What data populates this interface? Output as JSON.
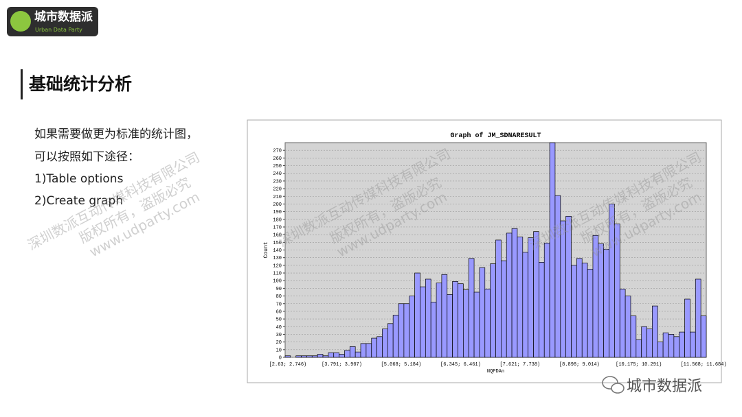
{
  "slide": {
    "logo": {
      "name": "城市数据派",
      "subtitle": "Urban Data Party"
    },
    "title": "基础统计分析",
    "body": [
      "如果需要做更为标准的统计图，",
      "可以按照如下途径：",
      "1)Table options",
      "2)Create graph"
    ],
    "watermark": [
      "深圳数派互动传媒科技有限公司",
      "版权所有，盗版必究",
      "www.udparty.com"
    ],
    "footer": "城市数据派"
  },
  "chart_data": {
    "type": "bar",
    "title": "Graph of JM_SDNARESULT",
    "x_label": "NQPDAn",
    "y_label": "Count",
    "color": "#9999ff",
    "grid": true,
    "ylim": [
      0,
      280
    ],
    "yticks": [
      0,
      10,
      20,
      30,
      40,
      50,
      60,
      70,
      80,
      90,
      100,
      110,
      120,
      130,
      140,
      150,
      160,
      170,
      180,
      190,
      200,
      210,
      220,
      230,
      240,
      250,
      260,
      270
    ],
    "categories": [
      "[2.63; 2.746)",
      null,
      null,
      null,
      null,
      null,
      null,
      null,
      null,
      null,
      "[3.791; 3.907)",
      null,
      null,
      null,
      null,
      null,
      null,
      null,
      null,
      null,
      null,
      "[5.068; 5.184)",
      null,
      null,
      null,
      null,
      null,
      null,
      null,
      null,
      null,
      null,
      "[6.345; 6.461)",
      null,
      null,
      null,
      null,
      null,
      null,
      null,
      null,
      null,
      null,
      "[7.621; 7.738)",
      null,
      null,
      null,
      null,
      null,
      null,
      null,
      null,
      null,
      null,
      "[8.898; 9.014)",
      null,
      null,
      null,
      null,
      null,
      null,
      null,
      null,
      null,
      null,
      "[10.175; 10.291)",
      null,
      null,
      null,
      null,
      null,
      null,
      null,
      null,
      null,
      null,
      null,
      "[11.568; 11.684)"
    ],
    "values": [
      2,
      0,
      2,
      2,
      2,
      2,
      4,
      2,
      6,
      6,
      4,
      9,
      14,
      7,
      18,
      18,
      25,
      27,
      37,
      44,
      55,
      70,
      70,
      80,
      110,
      92,
      102,
      72,
      97,
      108,
      82,
      99,
      96,
      88,
      129,
      85,
      117,
      89,
      122,
      153,
      126,
      162,
      168,
      157,
      137,
      156,
      164,
      124,
      149,
      280,
      211,
      178,
      184,
      120,
      129,
      123,
      115,
      159,
      148,
      141,
      200,
      174,
      89,
      80,
      54,
      23,
      40,
      37,
      67,
      20,
      32,
      30,
      27,
      33,
      76,
      33,
      102,
      54
    ]
  }
}
